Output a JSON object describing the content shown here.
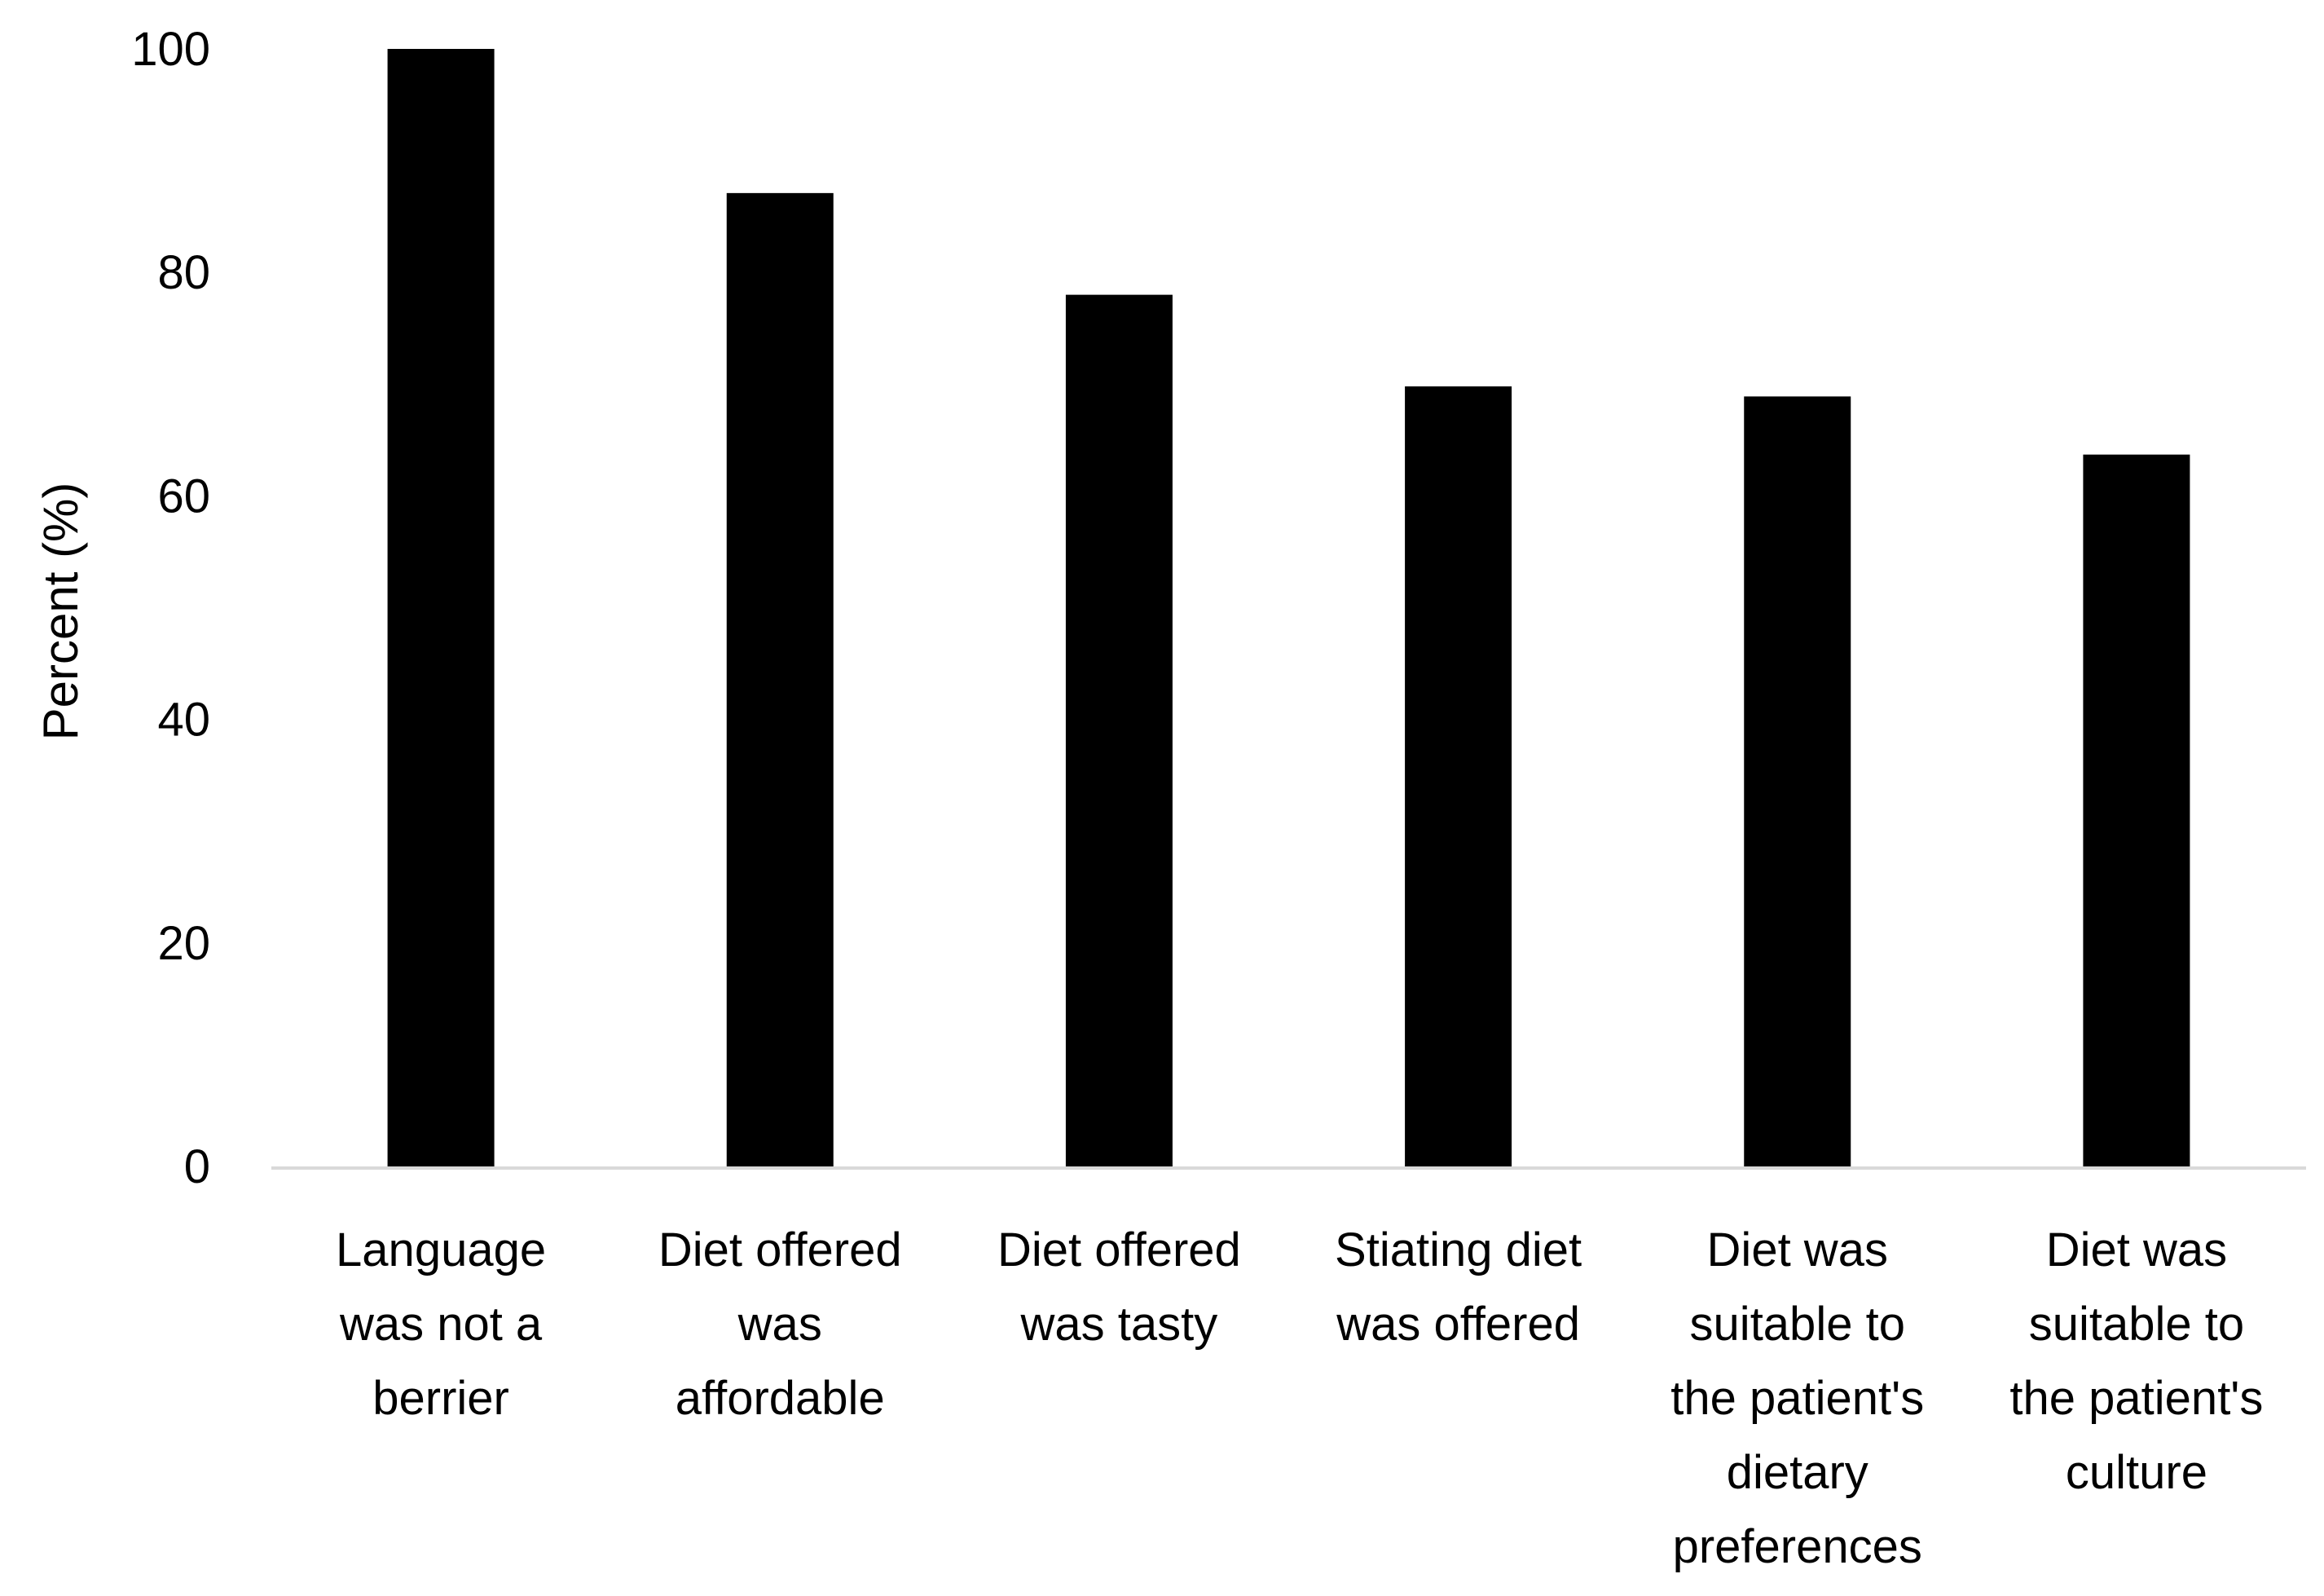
{
  "chart_data": {
    "type": "bar",
    "title": "",
    "xlabel": "",
    "ylabel": "Percent (%)",
    "ylim": [
      0,
      100
    ],
    "yticks": [
      0,
      20,
      40,
      60,
      80,
      100
    ],
    "grid": false,
    "bar_color": "#000000",
    "axis_color": "#d9d9d9",
    "categories": [
      [
        "Language",
        "was not a",
        "berrier"
      ],
      [
        "Diet offered",
        "was",
        "affordable"
      ],
      [
        "Diet offered",
        "was tasty"
      ],
      [
        "Stiating diet",
        "was offered"
      ],
      [
        "Diet was",
        "suitable to",
        "the patient's",
        "dietary",
        "preferences"
      ],
      [
        "Diet was",
        "suitable to",
        "the patient's",
        "culture"
      ]
    ],
    "values": [
      100,
      87.1,
      78.0,
      69.8,
      68.9,
      63.7
    ]
  }
}
